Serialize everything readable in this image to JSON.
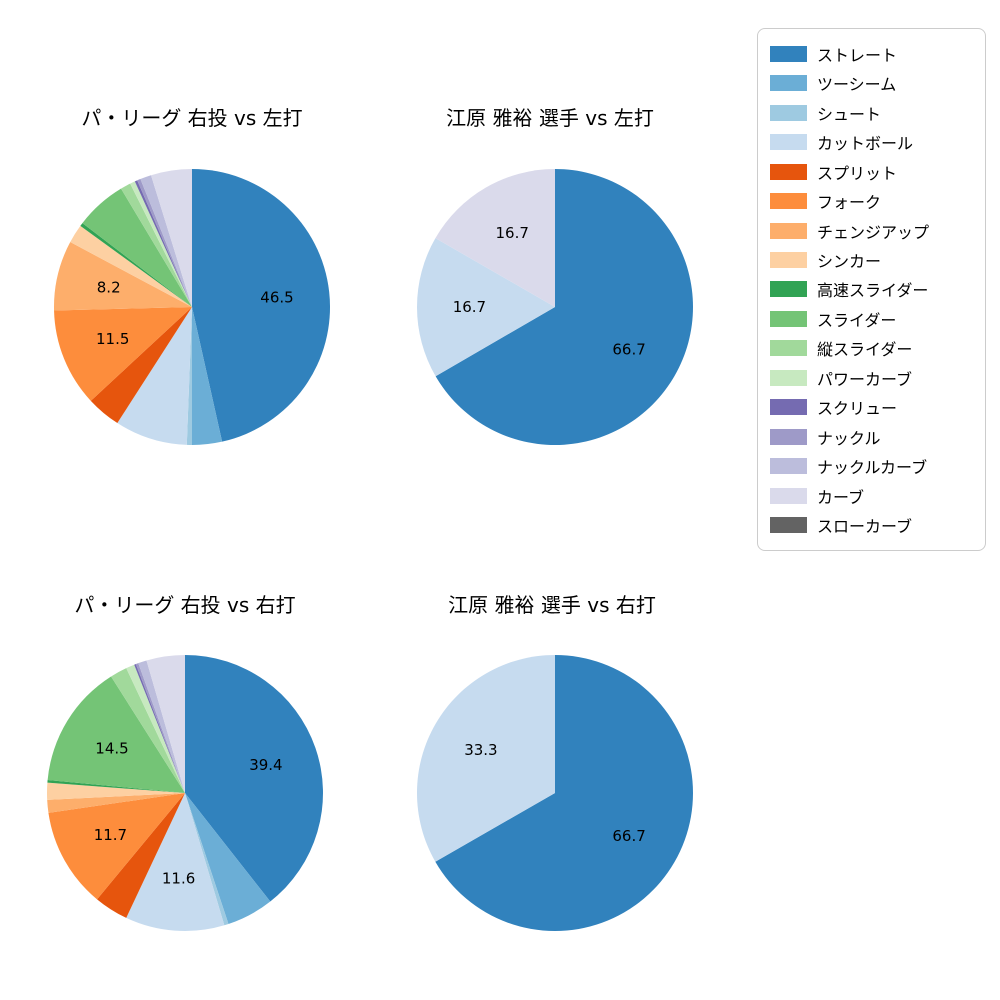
{
  "background_color": "#ffffff",
  "legend": {
    "items": [
      {
        "label": "ストレート",
        "color": "#3182bd"
      },
      {
        "label": "ツーシーム",
        "color": "#6baed6"
      },
      {
        "label": "シュート",
        "color": "#9ecae1"
      },
      {
        "label": "カットボール",
        "color": "#c6dbef"
      },
      {
        "label": "スプリット",
        "color": "#e6550d"
      },
      {
        "label": "フォーク",
        "color": "#fd8d3c"
      },
      {
        "label": "チェンジアップ",
        "color": "#fdae6b"
      },
      {
        "label": "シンカー",
        "color": "#fdd0a2"
      },
      {
        "label": "高速スライダー",
        "color": "#31a354"
      },
      {
        "label": "スライダー",
        "color": "#74c476"
      },
      {
        "label": "縦スライダー",
        "color": "#a1d99b"
      },
      {
        "label": "パワーカーブ",
        "color": "#c7e9c0"
      },
      {
        "label": "スクリュー",
        "color": "#756bb1"
      },
      {
        "label": "ナックル",
        "color": "#9e9ac8"
      },
      {
        "label": "ナックルカーブ",
        "color": "#bcbddc"
      },
      {
        "label": "カーブ",
        "color": "#dadaeb"
      },
      {
        "label": "スローカーブ",
        "color": "#636363"
      }
    ],
    "position": "top-right"
  },
  "chart_data": [
    {
      "type": "pie",
      "title": "パ・リーグ 右投 vs 左打",
      "start_angle_deg": 90,
      "direction": "clockwise",
      "label_distance": 0.62,
      "slices": [
        {
          "name": "ストレート",
          "value": 46.5,
          "label": "46.5"
        },
        {
          "name": "ツーシーム",
          "value": 3.5
        },
        {
          "name": "シュート",
          "value": 0.6
        },
        {
          "name": "カットボール",
          "value": 8.5
        },
        {
          "name": "スプリット",
          "value": 4.0
        },
        {
          "name": "フォーク",
          "value": 11.5,
          "label": "11.5"
        },
        {
          "name": "チェンジアップ",
          "value": 8.2,
          "label": "8.2"
        },
        {
          "name": "シンカー",
          "value": 2.2
        },
        {
          "name": "高速スライダー",
          "value": 0.4
        },
        {
          "name": "スライダー",
          "value": 6.0
        },
        {
          "name": "縦スライダー",
          "value": 1.2
        },
        {
          "name": "パワーカーブ",
          "value": 0.6
        },
        {
          "name": "スクリュー",
          "value": 0.3
        },
        {
          "name": "ナックル",
          "value": 0.4
        },
        {
          "name": "ナックルカーブ",
          "value": 1.3
        },
        {
          "name": "カーブ",
          "value": 4.8
        }
      ]
    },
    {
      "type": "pie",
      "title": "江原 雅裕 選手 vs 左打",
      "start_angle_deg": 90,
      "direction": "clockwise",
      "label_distance": 0.62,
      "slices": [
        {
          "name": "ストレート",
          "value": 66.7,
          "label": "66.7"
        },
        {
          "name": "カットボール",
          "value": 16.7,
          "label": "16.7"
        },
        {
          "name": "カーブ",
          "value": 16.7,
          "label": "16.7"
        }
      ]
    },
    {
      "type": "pie",
      "title": "パ・リーグ 右投 vs 右打",
      "start_angle_deg": 90,
      "direction": "clockwise",
      "label_distance": 0.62,
      "slices": [
        {
          "name": "ストレート",
          "value": 39.4,
          "label": "39.4"
        },
        {
          "name": "ツーシーム",
          "value": 5.5
        },
        {
          "name": "シュート",
          "value": 0.5
        },
        {
          "name": "カットボール",
          "value": 11.6,
          "label": "11.6"
        },
        {
          "name": "スプリット",
          "value": 4.0
        },
        {
          "name": "フォーク",
          "value": 11.7,
          "label": "11.7"
        },
        {
          "name": "チェンジアップ",
          "value": 1.5
        },
        {
          "name": "シンカー",
          "value": 2.0
        },
        {
          "name": "高速スライダー",
          "value": 0.3
        },
        {
          "name": "スライダー",
          "value": 14.5,
          "label": "14.5"
        },
        {
          "name": "縦スライダー",
          "value": 2.0
        },
        {
          "name": "パワーカーブ",
          "value": 1.0
        },
        {
          "name": "スクリュー",
          "value": 0.2
        },
        {
          "name": "ナックル",
          "value": 0.3
        },
        {
          "name": "ナックルカーブ",
          "value": 1.0
        },
        {
          "name": "カーブ",
          "value": 4.5
        }
      ]
    },
    {
      "type": "pie",
      "title": "江原 雅裕 選手 vs 右打",
      "start_angle_deg": 90,
      "direction": "clockwise",
      "label_distance": 0.62,
      "slices": [
        {
          "name": "ストレート",
          "value": 66.7,
          "label": "66.7"
        },
        {
          "name": "カットボール",
          "value": 33.3,
          "label": "33.3"
        }
      ]
    }
  ]
}
